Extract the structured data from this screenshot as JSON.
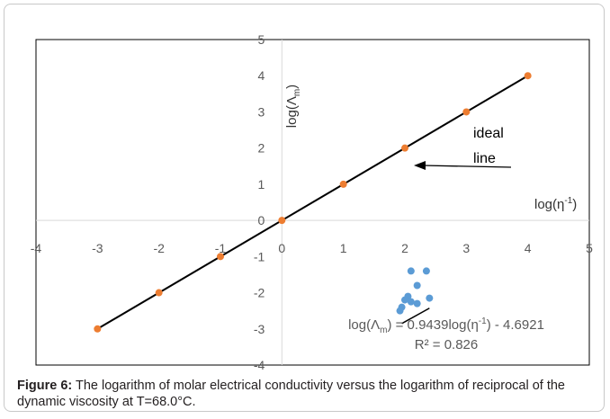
{
  "chart_data": {
    "type": "scatter",
    "xlabel_parts": [
      "log(η",
      "-1",
      ")"
    ],
    "ylabel_parts": [
      "log(Λ",
      "m",
      ")"
    ],
    "xlim": [
      -4,
      5
    ],
    "ylim": [
      -4,
      5
    ],
    "xticks": [
      "-4",
      "-3",
      "-2",
      "-1",
      "0",
      "1",
      "2",
      "3",
      "4",
      "5"
    ],
    "yticks": [
      "-4",
      "-3",
      "-2",
      "-1",
      "0",
      "1",
      "2",
      "3",
      "4",
      "5"
    ],
    "grid": false,
    "series": [
      {
        "kind": "ideal",
        "color": "#ed7d31",
        "points": [
          [
            -3,
            -3
          ],
          [
            -2,
            -2
          ],
          [
            -1,
            -1
          ],
          [
            0,
            0
          ],
          [
            1,
            1
          ],
          [
            2,
            2
          ],
          [
            3,
            3
          ],
          [
            4,
            4
          ]
        ],
        "line": [
          [
            -3,
            -3
          ],
          [
            4,
            4
          ]
        ]
      },
      {
        "kind": "measured",
        "color": "#5b9bd5",
        "points": [
          [
            2.1,
            -1.4
          ],
          [
            2.35,
            -1.4
          ],
          [
            2.2,
            -1.8
          ],
          [
            2.05,
            -2.1
          ],
          [
            2.0,
            -2.2
          ],
          [
            2.1,
            -2.25
          ],
          [
            2.2,
            -2.3
          ],
          [
            2.4,
            -2.15
          ],
          [
            1.95,
            -2.4
          ],
          [
            1.92,
            -2.5
          ]
        ],
        "fit": {
          "slope": 0.9439,
          "intercept": -4.6921,
          "x_range": [
            1.95,
            2.4
          ]
        }
      }
    ],
    "annotations": {
      "ideal_line_label_1": "ideal",
      "ideal_line_label_2": "line",
      "equation_parts": [
        "log(Λ",
        "m",
        ") = 0.9439log(η",
        "-1",
        ") - 4.6921"
      ],
      "r2": "R² = 0.826"
    }
  },
  "caption": {
    "label": "Figure 6:",
    "text": " The logarithm of molar electrical conductivity versus the logarithm of reciprocal of the dynamic viscosity at T=68.0°C."
  }
}
